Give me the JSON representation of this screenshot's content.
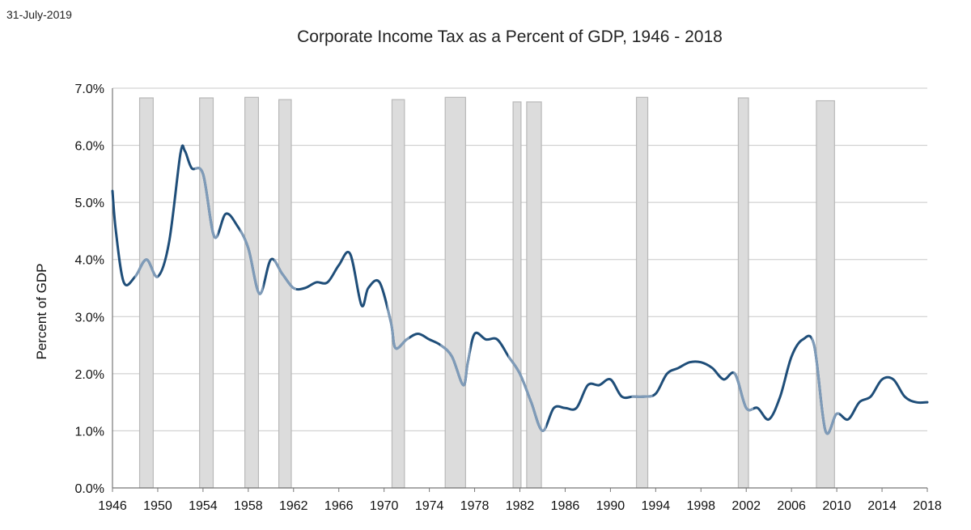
{
  "header": {
    "date": "31-July-2019"
  },
  "chart_data": {
    "type": "line",
    "title": "Corporate Income Tax as a Percent of GDP, 1946 - 2018",
    "xlabel": "",
    "ylabel": "Percent of GDP",
    "xlim": [
      1946,
      2018
    ],
    "ylim": [
      0,
      7
    ],
    "y_ticks": [
      "0.0%",
      "1.0%",
      "2.0%",
      "3.0%",
      "4.0%",
      "5.0%",
      "6.0%",
      "7.0%"
    ],
    "x_ticks": [
      "1946",
      "1950",
      "1954",
      "1958",
      "1962",
      "1966",
      "1970",
      "1974",
      "1978",
      "1982",
      "1986",
      "1990",
      "1994",
      "1998",
      "2002",
      "2006",
      "2010",
      "2014",
      "2018"
    ],
    "grid": true,
    "legend": "none",
    "colors": {
      "line": "#1f4e79",
      "line_recession": "#7f9bb8",
      "recession": "#dcdcdc",
      "recession_edge": "#b8b8b8",
      "grid": "#c8c8c8"
    },
    "recessions": [
      [
        1948.4,
        1949.6
      ],
      [
        1953.7,
        1954.9
      ],
      [
        1957.7,
        1958.9
      ],
      [
        1960.7,
        1961.8
      ],
      [
        1970.7,
        1971.8
      ],
      [
        1975.4,
        1977.2
      ],
      [
        1981.4,
        1982.1
      ],
      [
        1982.6,
        1983.9
      ],
      [
        1992.3,
        1993.3
      ],
      [
        2001.3,
        2002.2
      ],
      [
        2008.2,
        2009.8
      ]
    ],
    "recession_heights": [
      6.83,
      6.83,
      6.84,
      6.8,
      6.8,
      6.84,
      6.76,
      6.76,
      6.84,
      6.83,
      6.78
    ],
    "series": [
      {
        "x": [
          1946,
          1946.3,
          1947,
          1948,
          1949,
          1950,
          1951,
          1952,
          1952.4,
          1953,
          1954,
          1955,
          1956,
          1957,
          1958,
          1959,
          1960,
          1961,
          1962,
          1963,
          1964,
          1965,
          1966,
          1967,
          1968,
          1968.6,
          1969.6,
          1970.6,
          1971,
          1972,
          1973,
          1974,
          1975,
          1976,
          1977,
          1977.4,
          1978,
          1979,
          1980,
          1981,
          1982,
          1983,
          1984,
          1985,
          1986,
          1987,
          1988,
          1989,
          1990,
          1991,
          1992,
          1993,
          1994,
          1995,
          1996,
          1997,
          1998,
          1999,
          2000,
          2001,
          2002,
          2003,
          2004,
          2005,
          2006,
          2007,
          2008,
          2009,
          2010,
          2011,
          2012,
          2013,
          2014,
          2015,
          2016,
          2017,
          2018
        ],
        "y": [
          5.2,
          4.5,
          3.6,
          3.7,
          4.0,
          3.7,
          4.3,
          5.85,
          5.9,
          5.6,
          5.5,
          4.4,
          4.8,
          4.6,
          4.2,
          3.4,
          4.0,
          3.75,
          3.5,
          3.5,
          3.6,
          3.6,
          3.9,
          4.1,
          3.2,
          3.5,
          3.6,
          2.9,
          2.45,
          2.6,
          2.7,
          2.6,
          2.5,
          2.3,
          1.8,
          2.2,
          2.7,
          2.6,
          2.6,
          2.3,
          2.0,
          1.5,
          1.0,
          1.4,
          1.4,
          1.4,
          1.8,
          1.8,
          1.9,
          1.6,
          1.6,
          1.6,
          1.65,
          2.0,
          2.1,
          2.2,
          2.2,
          2.1,
          1.9,
          2.0,
          1.4,
          1.4,
          1.2,
          1.6,
          2.3,
          2.6,
          2.5,
          1.0,
          1.3,
          1.2,
          1.5,
          1.6,
          1.9,
          1.9,
          1.6,
          1.5,
          1.5
        ]
      }
    ]
  }
}
